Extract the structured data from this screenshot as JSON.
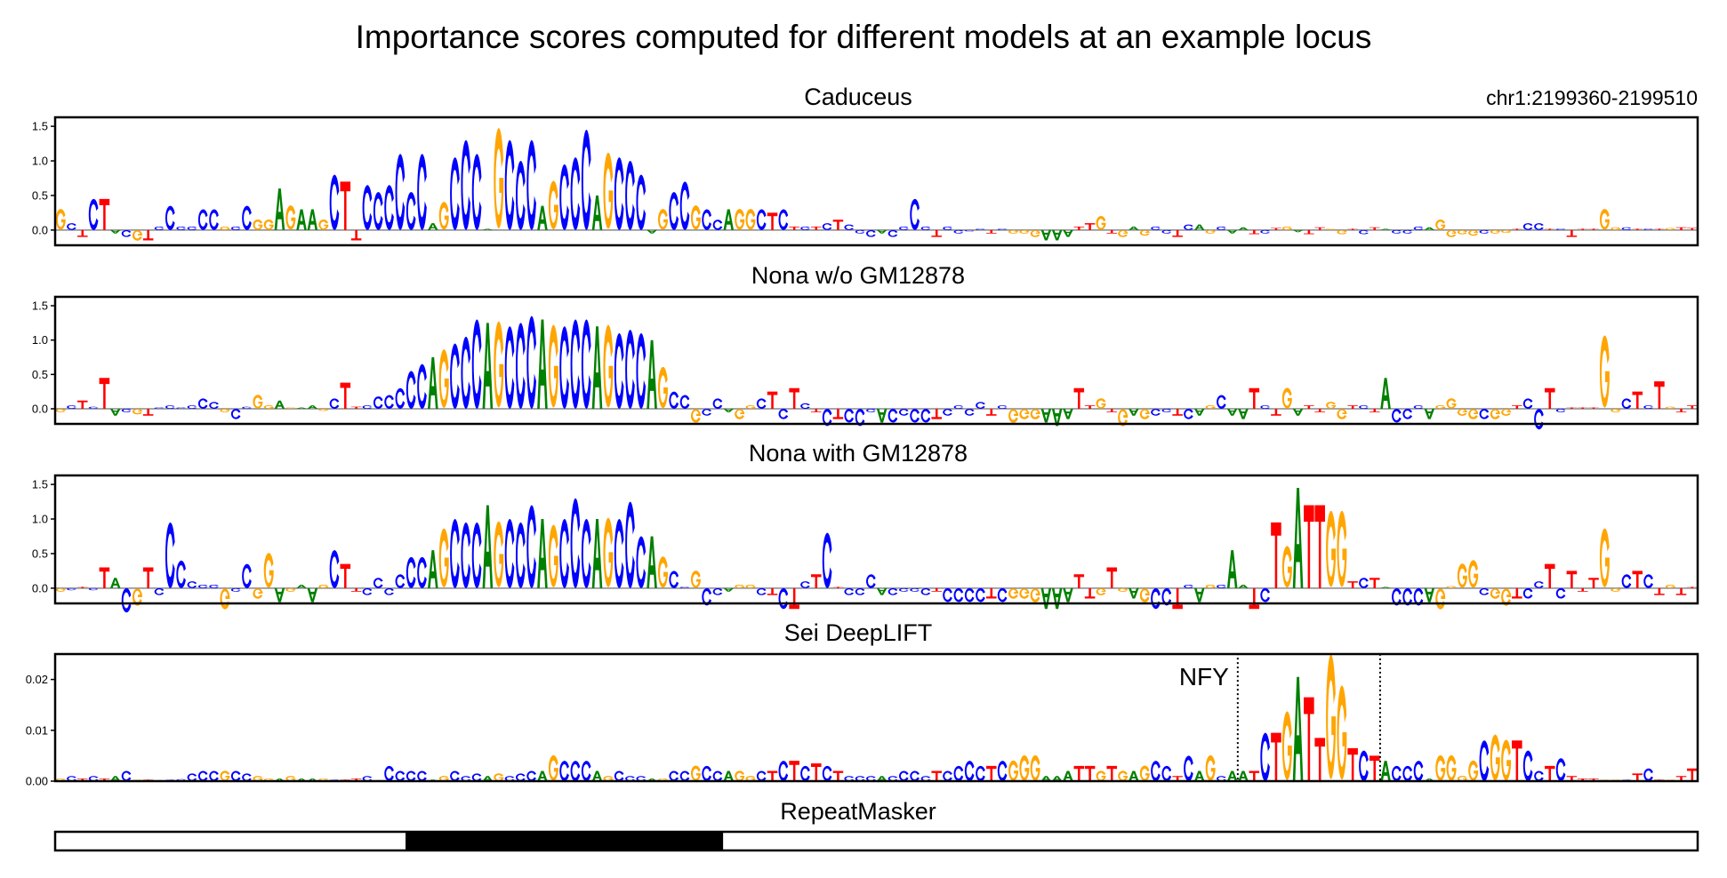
{
  "title": "Importance scores computed for different models at an example locus",
  "locus": "chr1:2199360-2199510",
  "colors": {
    "A": "#008000",
    "C": "#0000ff",
    "G": "#ffa500",
    "T": "#ff0000"
  },
  "chart_data": {
    "type": "sequence-logo",
    "sequence": "GCTCTACGTCCCCCCGCCGGAGAAGCTTCCCCCCAGCCCAGCCCAGCCCAGCCCAGCCGCCAGGCTCTCTCTCCCACCCCTCCCCTCGGGAAATTGTGAGCCTCAGCAATCTGATTGGTCTACCCAGGGGCGGTCCTCTTTGGCTCTGTT",
    "panels": [
      {
        "title": "Caduceus",
        "ylim": [
          -0.22,
          1.63
        ],
        "yticks": [
          "0.0",
          "0.5",
          "1.0",
          "1.5"
        ],
        "values": [
          0.3,
          0.1,
          -0.1,
          0.45,
          0.45,
          -0.05,
          -0.1,
          -0.15,
          -0.15,
          0.05,
          0.35,
          0.05,
          0.05,
          0.3,
          0.3,
          0.05,
          0.05,
          0.35,
          0.15,
          0.15,
          0.6,
          0.35,
          0.3,
          0.3,
          0.15,
          0.8,
          0.7,
          -0.15,
          0.65,
          0.55,
          0.65,
          1.1,
          0.55,
          1.1,
          0.1,
          0.4,
          1.05,
          1.3,
          1.1,
          0.02,
          1.45,
          1.3,
          1.0,
          1.3,
          0.35,
          0.7,
          0.95,
          1.05,
          1.45,
          0.5,
          1.1,
          1.05,
          1.0,
          0.8,
          -0.05,
          0.3,
          0.55,
          0.7,
          0.35,
          0.3,
          0.15,
          0.3,
          0.3,
          0.3,
          0.3,
          0.25,
          0.3,
          0.05,
          0.05,
          0.05,
          0.1,
          0.15,
          0.08,
          -0.05,
          -0.1,
          -0.05,
          -0.1,
          0.05,
          0.45,
          0.05,
          -0.1,
          0.05,
          -0.05,
          -0.02,
          0.02,
          -0.05,
          0.02,
          -0.05,
          -0.05,
          -0.1,
          -0.15,
          -0.15,
          -0.1,
          0.05,
          0.1,
          0.2,
          -0.05,
          -0.1,
          0.05,
          -0.08,
          0.05,
          -0.05,
          -0.1,
          0.08,
          0.08,
          -0.05,
          0.05,
          -0.05,
          0.04,
          -0.06,
          -0.05,
          0.03,
          0.05,
          -0.03,
          -0.06,
          0.04,
          0.02,
          -0.06,
          0.02,
          -0.06,
          0.04,
          0.02,
          -0.05,
          -0.05,
          0.05,
          0.04,
          0.15,
          -0.1,
          -0.06,
          -0.08,
          -0.05,
          -0.05,
          -0.04,
          0.02,
          0.1,
          0.1,
          0.02,
          0.02,
          -0.1,
          0.02,
          0.02,
          0.3,
          0.04,
          0.04,
          0.02,
          0.02,
          0.02,
          0.03,
          0.04,
          0.03
        ]
      },
      {
        "title": "Nona w/o GM12878",
        "ylim": [
          -0.22,
          1.63
        ],
        "yticks": [
          "0.0",
          "0.5",
          "1.0",
          "1.5"
        ],
        "values": [
          -0.05,
          0.05,
          0.12,
          0.03,
          0.45,
          -0.1,
          -0.05,
          -0.08,
          -0.1,
          0.02,
          0.05,
          0.02,
          0.05,
          0.15,
          0.1,
          -0.05,
          -0.15,
          0.03,
          0.2,
          0.05,
          0.12,
          0.02,
          0.02,
          0.05,
          -0.03,
          0.15,
          0.38,
          0.03,
          0.05,
          0.18,
          0.2,
          0.3,
          0.55,
          0.65,
          0.75,
          0.85,
          0.95,
          1.05,
          1.3,
          1.25,
          1.25,
          1.2,
          1.25,
          1.35,
          1.3,
          1.2,
          1.2,
          1.3,
          1.3,
          1.2,
          1.2,
          1.1,
          1.15,
          1.1,
          1.0,
          0.6,
          0.25,
          0.2,
          -0.2,
          -0.1,
          0.15,
          -0.05,
          -0.15,
          0.05,
          0.15,
          0.25,
          -0.15,
          0.3,
          0.08,
          -0.05,
          -0.25,
          -0.15,
          -0.2,
          -0.25,
          -0.05,
          -0.2,
          -0.2,
          -0.1,
          -0.2,
          -0.2,
          -0.15,
          -0.1,
          0.05,
          -0.1,
          0.1,
          -0.1,
          0.05,
          -0.2,
          -0.15,
          -0.15,
          -0.2,
          -0.25,
          -0.15,
          0.3,
          0.05,
          0.15,
          -0.05,
          -0.25,
          -0.1,
          -0.15,
          -0.1,
          -0.05,
          -0.1,
          -0.15,
          -0.1,
          0.05,
          0.2,
          -0.1,
          -0.15,
          0.3,
          0.05,
          -0.1,
          0.3,
          -0.1,
          0.05,
          -0.05,
          0.1,
          -0.15,
          0.05,
          0.05,
          -0.05,
          0.45,
          -0.2,
          -0.15,
          0.05,
          -0.15,
          0.05,
          0.15,
          -0.1,
          -0.15,
          -0.15,
          -0.15,
          -0.1,
          0.05,
          0.15,
          -0.3,
          0.3,
          -0.05,
          0.02,
          0.02,
          0.02,
          1.05,
          -0.05,
          0.15,
          0.25,
          0.05,
          0.4,
          0.03,
          -0.05,
          0.05
        ]
      },
      {
        "title": "Nona with GM12878",
        "ylim": [
          -0.22,
          1.63
        ],
        "yticks": [
          "0.0",
          "0.5",
          "1.0",
          "1.5"
        ],
        "values": [
          -0.05,
          -0.03,
          0.02,
          -0.03,
          0.3,
          0.15,
          -0.35,
          -0.25,
          0.3,
          -0.1,
          0.95,
          0.4,
          0.1,
          0.05,
          0.05,
          -0.3,
          -0.05,
          0.35,
          -0.15,
          0.5,
          -0.2,
          -0.05,
          0.05,
          -0.2,
          0.05,
          0.55,
          0.35,
          -0.05,
          -0.1,
          0.15,
          -0.1,
          0.2,
          0.45,
          0.45,
          0.55,
          0.85,
          1.0,
          0.95,
          0.95,
          1.2,
          0.95,
          1.0,
          0.95,
          1.2,
          1.0,
          0.9,
          1.0,
          1.3,
          1.0,
          1.0,
          1.0,
          1.0,
          1.25,
          0.75,
          0.75,
          0.45,
          0.25,
          0.02,
          0.25,
          -0.25,
          -0.1,
          -0.05,
          0.05,
          0.05,
          -0.1,
          -0.1,
          -0.3,
          -0.3,
          0.1,
          0.2,
          0.8,
          0.02,
          -0.1,
          -0.1,
          0.2,
          -0.1,
          -0.1,
          -0.05,
          -0.05,
          -0.1,
          -0.05,
          -0.2,
          -0.2,
          -0.2,
          -0.2,
          -0.15,
          -0.2,
          -0.15,
          -0.15,
          -0.2,
          -0.3,
          -0.3,
          -0.2,
          0.2,
          -0.15,
          -0.1,
          0.3,
          -0.05,
          -0.15,
          -0.2,
          -0.3,
          -0.25,
          -0.3,
          0.05,
          -0.2,
          0.05,
          0.05,
          0.55,
          0.05,
          -0.3,
          -0.2,
          0.95,
          0.6,
          1.45,
          1.2,
          1.2,
          1.1,
          1.1,
          0.1,
          0.15,
          0.15,
          0.02,
          -0.25,
          -0.25,
          -0.25,
          -0.2,
          -0.3,
          0.03,
          0.35,
          0.4,
          -0.1,
          -0.15,
          -0.25,
          -0.15,
          -0.15,
          0.1,
          0.35,
          -0.15,
          0.25,
          -0.05,
          0.15,
          0.85,
          -0.05,
          0.2,
          0.25,
          0.2,
          -0.1,
          0.05,
          -0.1,
          0.02
        ]
      },
      {
        "title": "Sei DeepLIFT",
        "ylim": [
          0,
          0.025
        ],
        "yticks": [
          "0.00",
          "0.01",
          "0.02"
        ],
        "values": [
          0.0005,
          0.001,
          0.0005,
          0.001,
          0.0005,
          0.001,
          0.002,
          0.0003,
          0.0003,
          0.0002,
          0.0003,
          0.0004,
          0.0015,
          0.002,
          0.002,
          0.002,
          0.002,
          0.0015,
          0.001,
          0.0005,
          0.0005,
          0.001,
          0.0005,
          0.0005,
          0.0005,
          0.0003,
          0.0003,
          0.0005,
          0.001,
          0.0002,
          0.003,
          0.002,
          0.002,
          0.002,
          0.0003,
          0.001,
          0.002,
          0.001,
          0.0015,
          0.001,
          0.0015,
          0.001,
          0.0015,
          0.002,
          0.002,
          0.005,
          0.004,
          0.004,
          0.004,
          0.002,
          0.001,
          0.002,
          0.001,
          0.001,
          0.0005,
          0.0005,
          0.002,
          0.002,
          0.003,
          0.003,
          0.002,
          0.002,
          0.002,
          0.001,
          0.002,
          0.002,
          0.004,
          0.004,
          0.003,
          0.0035,
          0.003,
          0.002,
          0.001,
          0.001,
          0.001,
          0.001,
          0.001,
          0.002,
          0.002,
          0.001,
          0.002,
          0.002,
          0.003,
          0.004,
          0.003,
          0.003,
          0.004,
          0.004,
          0.005,
          0.005,
          0.001,
          0.001,
          0.002,
          0.003,
          0.003,
          0.002,
          0.003,
          0.002,
          0.002,
          0.003,
          0.004,
          0.003,
          0.001,
          0.005,
          0.002,
          0.005,
          0.001,
          0.002,
          0.002,
          0.002,
          0.0095,
          0.0095,
          0.0135,
          0.0205,
          0.0165,
          0.0085,
          0.0245,
          0.0185,
          0.0065,
          0.006,
          0.005,
          0.004,
          0.003,
          0.003,
          0.004,
          0.0005,
          0.005,
          0.005,
          0.001,
          0.004,
          0.008,
          0.009,
          0.008,
          0.008,
          0.006,
          0.002,
          0.003,
          0.0045,
          0.001,
          0.0005,
          0.0005,
          0.0003,
          0.0003,
          0.0003,
          0.0015,
          0.0025,
          0.0003,
          0.0003,
          0.001,
          0.0025
        ],
        "annotation": {
          "label": "NFY",
          "start": 108,
          "end": 121
        }
      }
    ],
    "repeatmasker": {
      "title": "RepeatMasker",
      "region": [
        32,
        61
      ]
    }
  }
}
